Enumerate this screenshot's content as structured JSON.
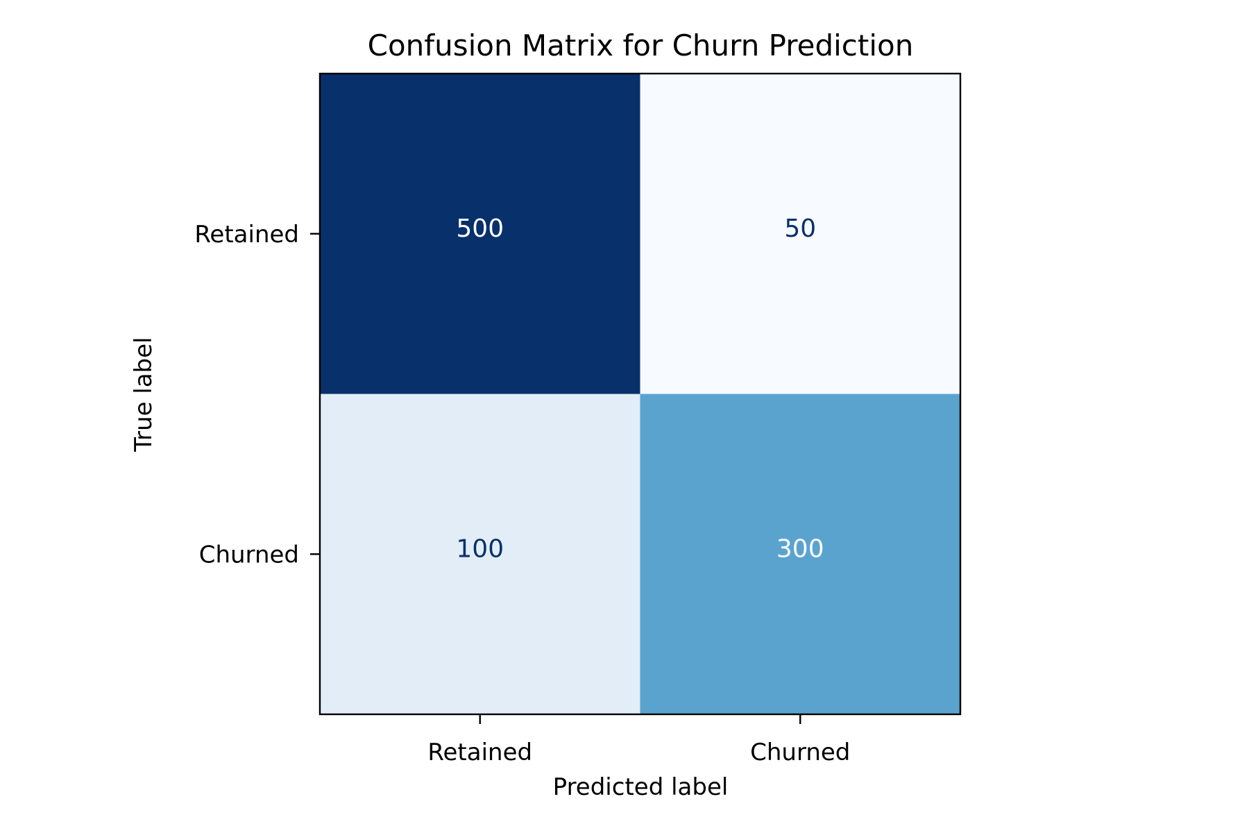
{
  "chart_data": {
    "type": "heatmap",
    "title": "Confusion Matrix for Churn Prediction",
    "xlabel": "Predicted label",
    "ylabel": "True label",
    "x_categories": [
      "Retained",
      "Churned"
    ],
    "y_categories": [
      "Retained",
      "Churned"
    ],
    "values": [
      [
        500,
        50
      ],
      [
        100,
        300
      ]
    ],
    "colormap": "Blues",
    "colorbar": false,
    "grid": false,
    "cell_colors": [
      [
        "#08306b",
        "#f7fbff"
      ],
      [
        "#e2edf7",
        "#5ba3cf"
      ]
    ],
    "label_colors": [
      [
        "#ffffff",
        "#08306b"
      ],
      [
        "#08306b",
        "#ffffff"
      ]
    ]
  }
}
